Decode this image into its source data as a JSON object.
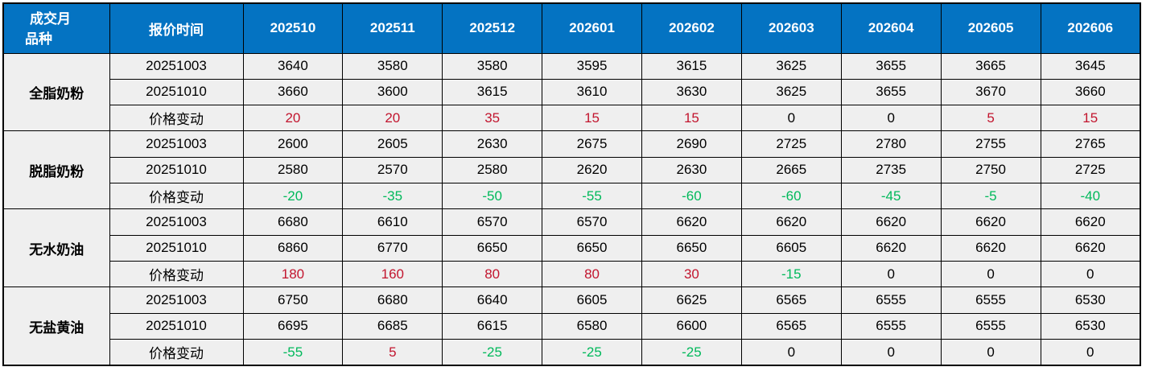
{
  "colors": {
    "header_bg": "#0473C2",
    "header_text": "#FFFFFF",
    "row_bg": "#EFEFEF",
    "border": "#000000",
    "up": "#C2152E",
    "down": "#00B95B"
  },
  "header": {
    "corner_line1": "成交月",
    "corner_line2": "品种",
    "quote_time": "报价时间"
  },
  "chart_data": {
    "type": "table",
    "corner_top_label": "成交月",
    "corner_bottom_label": "品种",
    "row_header_label": "报价时间",
    "change_row_label": "价格变动",
    "months": [
      "202510",
      "202511",
      "202512",
      "202601",
      "202602",
      "202603",
      "202604",
      "202605",
      "202606"
    ],
    "sections": [
      {
        "product": "全脂奶粉",
        "rows": [
          {
            "label": "20251003",
            "kind": "price",
            "values": [
              3640,
              3580,
              3580,
              3595,
              3615,
              3625,
              3655,
              3665,
              3645
            ]
          },
          {
            "label": "20251010",
            "kind": "price",
            "values": [
              3660,
              3600,
              3615,
              3610,
              3630,
              3625,
              3655,
              3670,
              3660
            ]
          },
          {
            "label": "价格变动",
            "kind": "change",
            "values": [
              20,
              20,
              35,
              15,
              15,
              0,
              0,
              5,
              15
            ]
          }
        ]
      },
      {
        "product": "脱脂奶粉",
        "rows": [
          {
            "label": "20251003",
            "kind": "price",
            "values": [
              2600,
              2605,
              2630,
              2675,
              2690,
              2725,
              2780,
              2755,
              2765
            ]
          },
          {
            "label": "20251010",
            "kind": "price",
            "values": [
              2580,
              2570,
              2580,
              2620,
              2630,
              2665,
              2735,
              2750,
              2725
            ]
          },
          {
            "label": "价格变动",
            "kind": "change",
            "values": [
              -20,
              -35,
              -50,
              -55,
              -60,
              -60,
              -45,
              -5,
              -40
            ]
          }
        ]
      },
      {
        "product": "无水奶油",
        "rows": [
          {
            "label": "20251003",
            "kind": "price",
            "values": [
              6680,
              6610,
              6570,
              6570,
              6620,
              6620,
              6620,
              6620,
              6620
            ]
          },
          {
            "label": "20251010",
            "kind": "price",
            "values": [
              6860,
              6770,
              6650,
              6650,
              6650,
              6605,
              6620,
              6620,
              6620
            ]
          },
          {
            "label": "价格变动",
            "kind": "change",
            "values": [
              180,
              160,
              80,
              80,
              30,
              -15,
              0,
              0,
              0
            ]
          }
        ]
      },
      {
        "product": "无盐黄油",
        "rows": [
          {
            "label": "20251003",
            "kind": "price",
            "values": [
              6750,
              6680,
              6640,
              6605,
              6625,
              6565,
              6555,
              6555,
              6530
            ]
          },
          {
            "label": "20251010",
            "kind": "price",
            "values": [
              6695,
              6685,
              6615,
              6580,
              6600,
              6565,
              6555,
              6555,
              6530
            ]
          },
          {
            "label": "价格变动",
            "kind": "change",
            "values": [
              -55,
              5,
              -25,
              -25,
              -25,
              0,
              0,
              0,
              0
            ]
          }
        ]
      }
    ]
  }
}
